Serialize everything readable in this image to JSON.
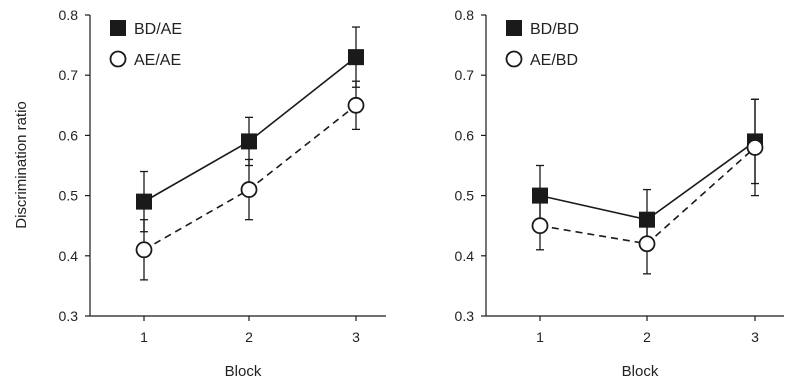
{
  "chart_data": [
    {
      "type": "line",
      "categories": [
        "1",
        "2",
        "3"
      ],
      "xlabel": "Block",
      "ylabel": "Discrimination ratio",
      "ylim": [
        0.3,
        0.8
      ],
      "yticks": [
        "0.3",
        "0.4",
        "0.5",
        "0.6",
        "0.7",
        "0.8"
      ],
      "grid": false,
      "legend_position": "top-left",
      "series": [
        {
          "name": "BD/AE",
          "values": [
            0.49,
            0.59,
            0.73
          ],
          "error": [
            0.05,
            0.04,
            0.05
          ],
          "marker": "filled-square",
          "line": "solid",
          "color": "#1a1a1a"
        },
        {
          "name": "AE/AE",
          "values": [
            0.41,
            0.51,
            0.65
          ],
          "error": [
            0.05,
            0.05,
            0.04
          ],
          "marker": "open-circle",
          "line": "dashed",
          "color": "#1a1a1a"
        }
      ]
    },
    {
      "type": "line",
      "categories": [
        "1",
        "2",
        "3"
      ],
      "xlabel": "Block",
      "ylabel": "",
      "ylim": [
        0.3,
        0.8
      ],
      "yticks": [
        "0.3",
        "0.4",
        "0.5",
        "0.6",
        "0.7",
        "0.8"
      ],
      "grid": false,
      "legend_position": "top-left",
      "series": [
        {
          "name": "BD/BD",
          "values": [
            0.5,
            0.46,
            0.59
          ],
          "error": [
            0.05,
            0.05,
            0.07
          ],
          "marker": "filled-square",
          "line": "solid",
          "color": "#1a1a1a"
        },
        {
          "name": "AE/BD",
          "values": [
            0.45,
            0.42,
            0.58
          ],
          "error": [
            0.04,
            0.05,
            0.08
          ],
          "marker": "open-circle",
          "line": "dashed",
          "color": "#1a1a1a"
        }
      ]
    }
  ]
}
